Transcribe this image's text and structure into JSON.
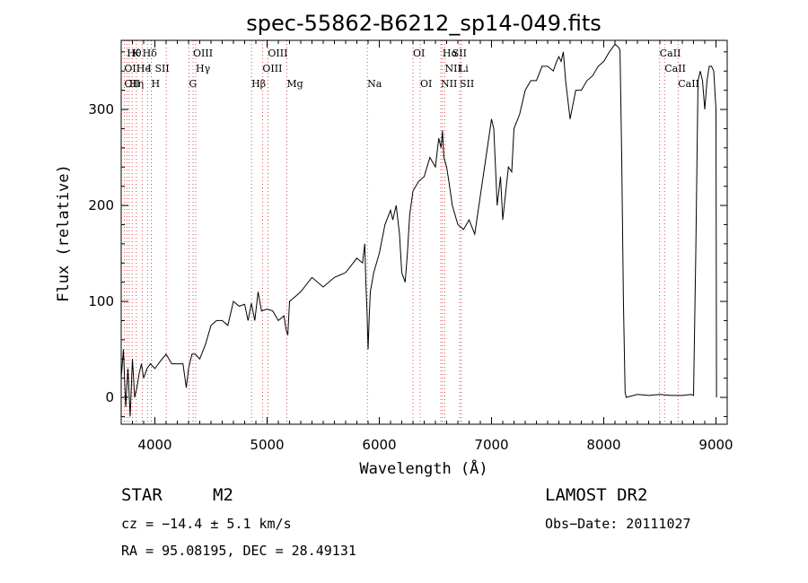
{
  "chart_data": {
    "type": "line",
    "title": "spec-55862-B6212_sp14-049.fits",
    "xlabel": "Wavelength (Å)",
    "ylabel": "Flux (relative)",
    "xlim": [
      3700,
      9100
    ],
    "ylim": [
      -28,
      372
    ],
    "x_ticks": [
      4000,
      5000,
      6000,
      7000,
      8000,
      9000
    ],
    "y_ticks": [
      0,
      100,
      200,
      300
    ],
    "grid": false,
    "series": [
      {
        "x": [
          3700,
          3720,
          3740,
          3760,
          3780,
          3800,
          3820,
          3840,
          3860,
          3880,
          3900,
          3930,
          3960,
          4000,
          4050,
          4100,
          4150,
          4200,
          4250,
          4280,
          4300,
          4330,
          4360,
          4400,
          4450,
          4500,
          4550,
          4600,
          4650,
          4700,
          4750,
          4800,
          4830,
          4860,
          4890,
          4920,
          4950,
          5000,
          5050,
          5100,
          5150,
          5170,
          5185,
          5200,
          5250,
          5300,
          5400,
          5500,
          5600,
          5700,
          5800,
          5850,
          5870,
          5880,
          5890,
          5895,
          5900,
          5910,
          5920,
          5950,
          6000,
          6050,
          6100,
          6120,
          6150,
          6180,
          6200,
          6230,
          6250,
          6270,
          6300,
          6350,
          6400,
          6450,
          6500,
          6530,
          6550,
          6563,
          6575,
          6600,
          6620,
          6650,
          6700,
          6750,
          6800,
          6850,
          6900,
          6950,
          7000,
          7020,
          7050,
          7080,
          7100,
          7150,
          7180,
          7200,
          7250,
          7300,
          7350,
          7400,
          7450,
          7500,
          7550,
          7580,
          7600,
          7620,
          7640,
          7660,
          7680,
          7700,
          7750,
          7800,
          7850,
          7900,
          7950,
          8000,
          8050,
          8100,
          8130,
          8145,
          8160,
          8175,
          8190,
          8200,
          8300,
          8400,
          8500,
          8600,
          8700,
          8780,
          8800,
          8820,
          8840,
          8860,
          8880,
          8900,
          8920,
          8940,
          8960,
          8980,
          9000,
          9005
        ],
        "y": [
          20,
          50,
          -10,
          30,
          -20,
          40,
          0,
          10,
          25,
          35,
          20,
          30,
          35,
          30,
          38,
          45,
          35,
          35,
          35,
          10,
          30,
          45,
          45,
          40,
          55,
          75,
          80,
          80,
          75,
          100,
          95,
          97,
          80,
          98,
          80,
          110,
          90,
          92,
          90,
          80,
          85,
          70,
          65,
          100,
          105,
          110,
          125,
          115,
          125,
          130,
          145,
          140,
          160,
          120,
          90,
          70,
          50,
          85,
          110,
          130,
          150,
          180,
          195,
          185,
          200,
          170,
          130,
          120,
          150,
          190,
          215,
          225,
          230,
          250,
          240,
          270,
          260,
          278,
          250,
          240,
          225,
          200,
          180,
          175,
          185,
          170,
          210,
          250,
          290,
          280,
          200,
          230,
          185,
          240,
          235,
          280,
          295,
          320,
          330,
          330,
          345,
          345,
          340,
          350,
          355,
          350,
          360,
          330,
          310,
          290,
          320,
          320,
          330,
          335,
          345,
          350,
          360,
          368,
          365,
          362,
          250,
          100,
          5,
          0,
          3,
          2,
          3,
          2,
          2,
          3,
          2,
          150,
          330,
          340,
          330,
          300,
          330,
          345,
          345,
          340,
          300,
          0
        ]
      }
    ],
    "emission_line_markers": [
      {
        "x": 3750,
        "tier": 1,
        "label": "Hθ"
      },
      {
        "x": 3798,
        "tier": 1,
        "label": "K"
      },
      {
        "x": 3889,
        "tier": 1,
        "label": "Hδ"
      },
      {
        "x": 4340,
        "tier": 1,
        "label": "OIII"
      },
      {
        "x": 5007,
        "tier": 1,
        "label": "OIII"
      },
      {
        "x": 6300,
        "tier": 1,
        "label": "OI"
      },
      {
        "x": 6563,
        "tier": 1,
        "label": "Hα"
      },
      {
        "x": 6650,
        "tier": 1,
        "label": "SII"
      },
      {
        "x": 8498,
        "tier": 1,
        "label": "CaII"
      },
      {
        "x": 3727,
        "tier": 2,
        "label": "OII"
      },
      {
        "x": 3835,
        "tier": 2,
        "label": "He"
      },
      {
        "x": 3934,
        "tier": 2,
        "label": "I"
      },
      {
        "x": 4000,
        "tier": 2,
        "label": "SII"
      },
      {
        "x": 4364,
        "tier": 2,
        "label": "Hγ"
      },
      {
        "x": 4959,
        "tier": 2,
        "label": "OIII"
      },
      {
        "x": 6584,
        "tier": 2,
        "label": "NII"
      },
      {
        "x": 6708,
        "tier": 2,
        "label": "Li"
      },
      {
        "x": 8542,
        "tier": 2,
        "label": "CaII"
      },
      {
        "x": 3727,
        "tier": 3,
        "label": "OII"
      },
      {
        "x": 3771,
        "tier": 3,
        "label": "Hη"
      },
      {
        "x": 3968,
        "tier": 3,
        "label": "H"
      },
      {
        "x": 4304,
        "tier": 3,
        "label": "G"
      },
      {
        "x": 4861,
        "tier": 3,
        "label": "Hβ"
      },
      {
        "x": 5175,
        "tier": 3,
        "label": "Mg"
      },
      {
        "x": 5893,
        "tier": 3,
        "label": "Na"
      },
      {
        "x": 6364,
        "tier": 3,
        "label": "OI"
      },
      {
        "x": 6548,
        "tier": 3,
        "label": "NII"
      },
      {
        "x": 6716,
        "tier": 3,
        "label": "SII"
      },
      {
        "x": 8662,
        "tier": 3,
        "label": "CaII"
      }
    ],
    "marker_lines_x": [
      3727,
      3750,
      3771,
      3798,
      3835,
      3889,
      3934,
      3968,
      4101,
      4304,
      4340,
      4364,
      4861,
      4959,
      5007,
      5175,
      5893,
      6300,
      6364,
      6548,
      6563,
      6584,
      6716,
      6731,
      8498,
      8542,
      8662
    ]
  },
  "info": {
    "obj_class": "STAR",
    "subclass": "M2",
    "survey": "LAMOST DR2",
    "cz": "cz = −14.4 ± 5.1 km/s",
    "obs_date": "Obs−Date: 20111027",
    "coords": "RA =  95.08195, DEC =  28.49131"
  },
  "colors": {
    "line": "#000000",
    "markers": "#d02020",
    "frame": "#000000"
  }
}
